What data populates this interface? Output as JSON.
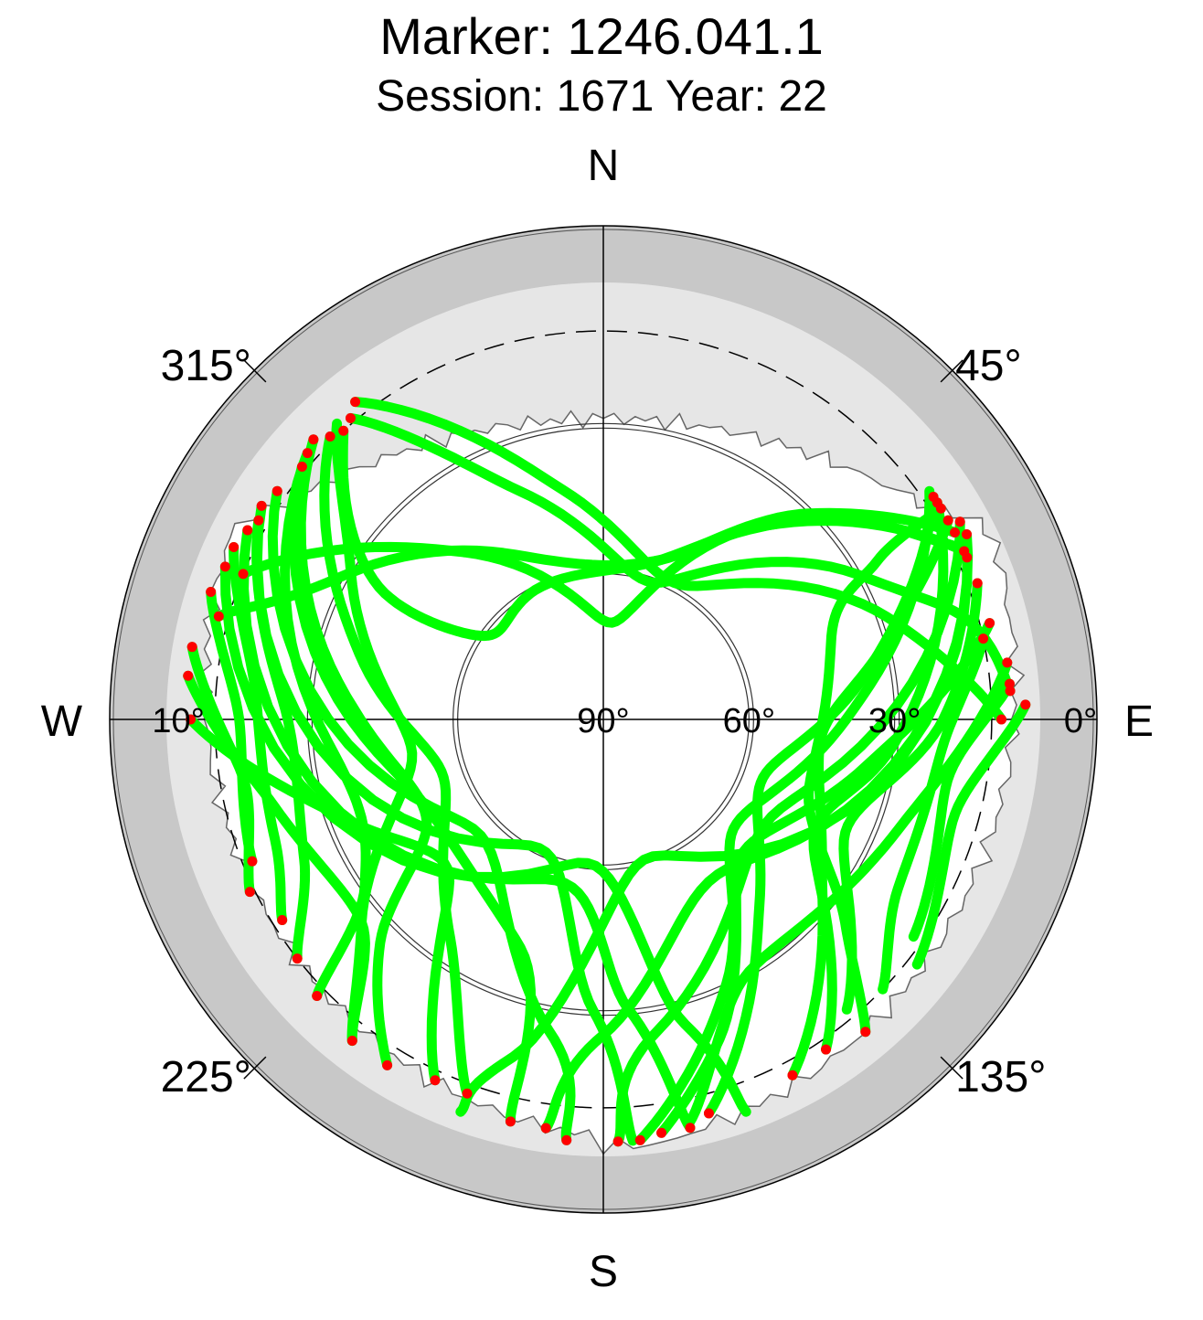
{
  "chart_data": {
    "type": "scatter",
    "title": "Marker: 1246.041.1",
    "subtitle": "Session: 1671 Year: 22",
    "projection": "polar-sky",
    "azimuth_range_deg": [
      0,
      360
    ],
    "elevation_range_deg": [
      0,
      90
    ],
    "compass_labels": [
      "N",
      "E",
      "S",
      "W"
    ],
    "azimuth_tick_labels": [
      {
        "az": 45,
        "label": "45°"
      },
      {
        "az": 135,
        "label": "135°"
      },
      {
        "az": 225,
        "label": "225°"
      },
      {
        "az": 315,
        "label": "315°"
      }
    ],
    "elevation_tick_labels": [
      {
        "el": 0,
        "label": "0°",
        "side": "east"
      },
      {
        "el": 30,
        "label": "30°",
        "side": "east"
      },
      {
        "el": 60,
        "label": "60°",
        "side": "east"
      },
      {
        "el": 90,
        "label": "90°",
        "side": "center"
      },
      {
        "el": 10,
        "label": "10°",
        "side": "west"
      }
    ],
    "elevation_mask_deg": 10,
    "grid_elevations_deg": [
      30,
      60
    ],
    "colors": {
      "track": "#00ff00",
      "endpoint": "#ff0000",
      "outer_ring": "#c8c8c8",
      "obstruction": "#e6e6e6",
      "mask_line": "#000000"
    },
    "series": [
      {
        "values": [
          [
            65,
            8
          ],
          [
            38,
            40
          ],
          [
            5,
            70
          ],
          [
            320,
            45
          ],
          [
            292,
            10
          ]
        ]
      },
      {
        "values": [
          [
            62,
            8
          ],
          [
            45,
            30
          ],
          [
            20,
            55
          ],
          [
            340,
            55
          ],
          [
            298,
            28
          ],
          [
            285,
            8
          ]
        ]
      },
      {
        "values": [
          [
            58,
            8
          ],
          [
            60,
            25
          ],
          [
            70,
            40
          ],
          [
            110,
            45
          ],
          [
            130,
            25
          ],
          [
            140,
            6
          ]
        ]
      },
      {
        "values": [
          [
            60,
            8
          ],
          [
            75,
            30
          ],
          [
            95,
            45
          ],
          [
            125,
            35
          ],
          [
            152,
            7
          ]
        ]
      },
      {
        "values": [
          [
            56,
            8
          ],
          [
            80,
            35
          ],
          [
            110,
            55
          ],
          [
            140,
            40
          ],
          [
            165,
            6
          ]
        ]
      },
      {
        "values": [
          [
            55,
            8
          ],
          [
            90,
            40
          ],
          [
            130,
            55
          ],
          [
            155,
            30
          ],
          [
            175,
            3
          ]
        ]
      },
      {
        "values": [
          [
            57,
            8
          ],
          [
            95,
            30
          ],
          [
            120,
            40
          ],
          [
            146,
            8
          ]
        ]
      },
      {
        "values": [
          [
            70,
            8
          ],
          [
            90,
            20
          ],
          [
            115,
            35
          ],
          [
            140,
            12
          ]
        ]
      },
      {
        "values": [
          [
            78,
            10
          ],
          [
            95,
            20
          ],
          [
            120,
            20
          ],
          [
            134,
            10
          ]
        ]
      },
      {
        "values": [
          [
            85,
            6
          ],
          [
            100,
            18
          ],
          [
            125,
            12
          ]
        ]
      },
      {
        "values": [
          [
            88,
            3
          ],
          [
            105,
            15
          ],
          [
            128,
            8
          ]
        ]
      },
      {
        "values": [
          [
            82,
            6
          ],
          [
            110,
            25
          ],
          [
            150,
            30
          ],
          [
            168,
            5
          ]
        ]
      },
      {
        "values": [
          [
            76,
            8
          ],
          [
            100,
            35
          ],
          [
            135,
            50
          ],
          [
            160,
            20
          ],
          [
            172,
            4
          ]
        ]
      },
      {
        "values": [
          [
            61,
            6
          ],
          [
            120,
            50
          ],
          [
            170,
            25
          ],
          [
            178,
            3
          ]
        ]
      },
      {
        "values": [
          [
            63,
            6
          ],
          [
            140,
            50
          ],
          [
            180,
            25
          ],
          [
            188,
            5
          ]
        ]
      },
      {
        "values": [
          [
            66,
            8
          ],
          [
            160,
            60
          ],
          [
            195,
            18
          ],
          [
            200,
            4
          ]
        ]
      },
      {
        "values": [
          [
            320,
            9
          ],
          [
            340,
            40
          ],
          [
            20,
            60
          ],
          [
            60,
            30
          ],
          [
            75,
            12
          ],
          [
            86,
            6
          ]
        ]
      },
      {
        "values": [
          [
            322,
            7
          ],
          [
            350,
            42
          ],
          [
            30,
            58
          ],
          [
            70,
            28
          ],
          [
            90,
            8
          ]
        ]
      },
      {
        "values": [
          [
            318,
            8
          ],
          [
            300,
            30
          ],
          [
            260,
            50
          ],
          [
            230,
            25
          ],
          [
            218,
            6
          ]
        ]
      },
      {
        "values": [
          [
            316,
            9
          ],
          [
            285,
            38
          ],
          [
            250,
            55
          ],
          [
            215,
            35
          ],
          [
            200,
            8
          ]
        ]
      },
      {
        "values": [
          [
            314,
            7
          ],
          [
            270,
            40
          ],
          [
            240,
            48
          ],
          [
            225,
            25
          ],
          [
            212,
            6
          ]
        ]
      },
      {
        "values": [
          [
            312,
            8
          ],
          [
            260,
            35
          ],
          [
            235,
            30
          ],
          [
            226,
            8
          ]
        ]
      },
      {
        "values": [
          [
            300,
            8
          ],
          [
            270,
            25
          ],
          [
            245,
            22
          ],
          [
            232,
            10
          ]
        ]
      },
      {
        "values": [
          [
            295,
            6
          ],
          [
            275,
            18
          ],
          [
            250,
            18
          ],
          [
            238,
            12
          ]
        ]
      },
      {
        "values": [
          [
            288,
            5
          ],
          [
            270,
            15
          ],
          [
            248,
            12
          ]
        ]
      },
      {
        "values": [
          [
            280,
            4
          ],
          [
            260,
            15
          ],
          [
            244,
            9
          ]
        ]
      },
      {
        "values": [
          [
            276,
            4
          ],
          [
            255,
            20
          ],
          [
            230,
            25
          ],
          [
            218,
            6
          ]
        ]
      },
      {
        "values": [
          [
            270,
            5
          ],
          [
            250,
            32
          ],
          [
            225,
            45
          ],
          [
            205,
            8
          ]
        ]
      },
      {
        "values": [
          [
            310,
            9
          ],
          [
            250,
            48
          ],
          [
            200,
            40
          ],
          [
            193,
            5
          ]
        ]
      },
      {
        "values": [
          [
            305,
            8
          ],
          [
            230,
            55
          ],
          [
            190,
            25
          ],
          [
            185,
            3
          ]
        ]
      },
      {
        "values": [
          [
            302,
            7
          ],
          [
            210,
            60
          ],
          [
            182,
            30
          ],
          [
            176,
            3
          ]
        ]
      },
      {
        "values": [
          [
            298,
            7
          ],
          [
            200,
            55
          ],
          [
            175,
            30
          ],
          [
            168,
            4
          ]
        ]
      },
      {
        "values": [
          [
            292,
            6
          ],
          [
            190,
            60
          ],
          [
            165,
            25
          ],
          [
            160,
            4
          ]
        ]
      },
      {
        "values": [
          [
            318,
            10
          ],
          [
            300,
            38
          ],
          [
            305,
            60
          ],
          [
            330,
            60
          ],
          [
            20,
            55
          ],
          [
            55,
            20
          ],
          [
            64,
            9
          ]
        ]
      }
    ],
    "endpoints": [
      [
        318,
        10
      ],
      [
        320,
        9
      ],
      [
        322,
        7
      ],
      [
        316,
        9
      ],
      [
        314,
        7
      ],
      [
        312,
        8
      ],
      [
        310,
        9
      ],
      [
        305,
        8
      ],
      [
        302,
        7
      ],
      [
        300,
        8
      ],
      [
        298,
        7
      ],
      [
        295,
        6
      ],
      [
        292,
        10
      ],
      [
        292,
        6
      ],
      [
        288,
        5
      ],
      [
        285,
        8
      ],
      [
        280,
        4
      ],
      [
        276,
        4
      ],
      [
        270,
        5
      ],
      [
        56,
        8
      ],
      [
        57,
        8
      ],
      [
        58,
        8
      ],
      [
        60,
        8
      ],
      [
        61,
        6
      ],
      [
        62,
        8
      ],
      [
        63,
        6
      ],
      [
        65,
        8
      ],
      [
        66,
        8
      ],
      [
        70,
        8
      ],
      [
        76,
        8
      ],
      [
        78,
        10
      ],
      [
        82,
        6
      ],
      [
        85,
        6
      ],
      [
        86,
        6
      ],
      [
        88,
        3
      ],
      [
        90,
        8
      ],
      [
        140,
        6
      ],
      [
        146,
        8
      ],
      [
        152,
        7
      ],
      [
        165,
        6
      ],
      [
        168,
        4
      ],
      [
        172,
        4
      ],
      [
        175,
        3
      ],
      [
        178,
        3
      ],
      [
        185,
        3
      ],
      [
        188,
        5
      ],
      [
        193,
        5
      ],
      [
        200,
        8
      ],
      [
        205,
        8
      ],
      [
        212,
        6
      ],
      [
        218,
        6
      ],
      [
        226,
        8
      ],
      [
        232,
        10
      ],
      [
        238,
        12
      ],
      [
        244,
        9
      ],
      [
        248,
        12
      ]
    ]
  }
}
